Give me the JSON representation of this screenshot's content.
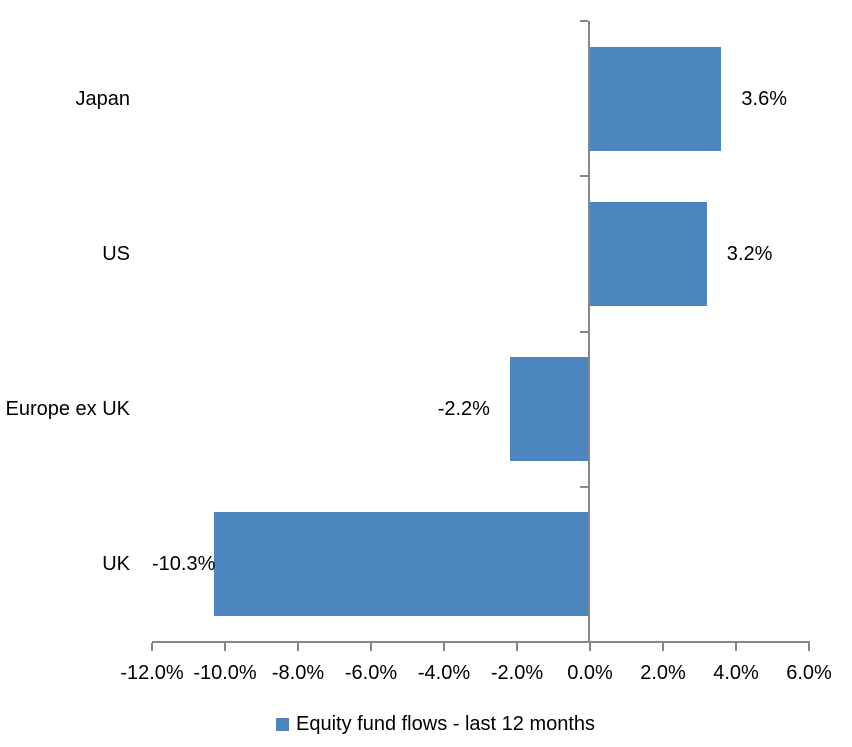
{
  "chart_data": {
    "type": "bar",
    "orientation": "horizontal",
    "title": "",
    "categories": [
      "Japan",
      "US",
      "Europe ex UK",
      "UK"
    ],
    "values": [
      3.6,
      3.2,
      -2.2,
      -10.3
    ],
    "data_labels": [
      "3.6%",
      "3.2%",
      "-2.2%",
      "-10.3%"
    ],
    "x_ticks": [
      -12,
      -10,
      -8,
      -6,
      -4,
      -2,
      0,
      2,
      4,
      6
    ],
    "x_tick_labels": [
      "-12.0%",
      "-10.0%",
      "-8.0%",
      "-6.0%",
      "-4.0%",
      "-2.0%",
      "0.0%",
      "2.0%",
      "4.0%",
      "6.0%"
    ],
    "xlim": [
      -12,
      6
    ],
    "grid": false,
    "data_label_position": "outside-end",
    "legend_position": "bottom-center",
    "bar_color": "#4D86BE",
    "axis_color": "#868686",
    "text_color": "#000000",
    "background_color": "#ffffff",
    "legend": [
      {
        "label": "Equity fund flows - last 12 months",
        "color": "#4D86BE"
      }
    ]
  }
}
